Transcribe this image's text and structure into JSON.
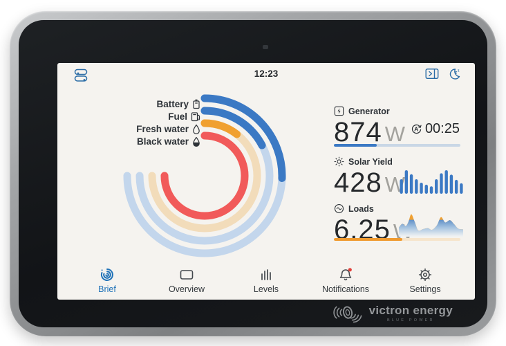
{
  "status_bar": {
    "time": "12:23"
  },
  "gauges": {
    "sweep_deg": 270,
    "items": [
      {
        "label": "Battery",
        "percent": 34,
        "color": "#3b79c4",
        "track": "#c3d6ec"
      },
      {
        "label": "Fuel",
        "percent": 23,
        "color": "#3b79c4",
        "track": "#c3d6ec"
      },
      {
        "label": "Fresh water",
        "percent": 14,
        "color": "#f0a030",
        "track": "#f2dcba"
      },
      {
        "label": "Black water",
        "percent": 100,
        "color": "#f15a5a",
        "track": "#f2dcba"
      }
    ]
  },
  "tiles": {
    "generator": {
      "label": "Generator",
      "value": "874",
      "unit": "W",
      "runtime": "00:25",
      "progress_percent": 34,
      "bar_color": "#3b79c4",
      "bar_track": "#c9d7e6"
    },
    "solar": {
      "label": "Solar Yield",
      "value": "428",
      "unit": "W",
      "bar_color": "#3b79c4",
      "bars": [
        55,
        100,
        80,
        55,
        38,
        28,
        20,
        55,
        85,
        100,
        78,
        52,
        35
      ]
    },
    "loads": {
      "label": "Loads",
      "value": "6.25",
      "unit": "W",
      "progress_percent": 54,
      "bar_color": "#f09a2e",
      "bar_track": "#f6e5cc",
      "area_threshold": 70,
      "area_points": [
        [
          0,
          35
        ],
        [
          5,
          52
        ],
        [
          10,
          42
        ],
        [
          14,
          62
        ],
        [
          18,
          95
        ],
        [
          23,
          60
        ],
        [
          28,
          22
        ],
        [
          35,
          28
        ],
        [
          42,
          32
        ],
        [
          48,
          25
        ],
        [
          55,
          45
        ],
        [
          61,
          82
        ],
        [
          67,
          58
        ],
        [
          74,
          68
        ],
        [
          80,
          50
        ],
        [
          86,
          30
        ],
        [
          93,
          27
        ]
      ]
    }
  },
  "nav": {
    "items": [
      {
        "label": "Brief",
        "active": true
      },
      {
        "label": "Overview",
        "active": false
      },
      {
        "label": "Levels",
        "active": false
      },
      {
        "label": "Notifications",
        "active": false,
        "badge": true
      },
      {
        "label": "Settings",
        "active": false
      }
    ]
  },
  "branding": {
    "logo_text": "victron energy",
    "logo_subtext": "BLUE POWER"
  }
}
